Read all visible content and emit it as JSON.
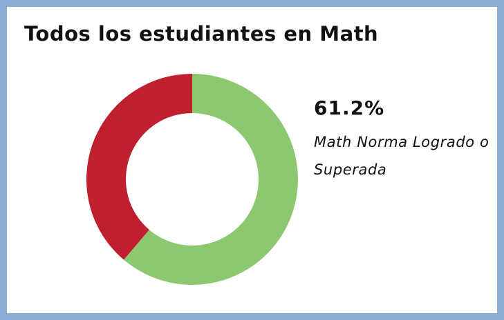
{
  "chart_data": {
    "type": "donut",
    "title": "Todos los estudiantes en Math",
    "categories": [
      "Math Norma Logrado o Superada",
      null
    ],
    "values": [
      61.2,
      38.8
    ],
    "value_labels": [
      "61.2%",
      null
    ],
    "colors": [
      "#8cc870",
      "#c0202e"
    ]
  }
}
